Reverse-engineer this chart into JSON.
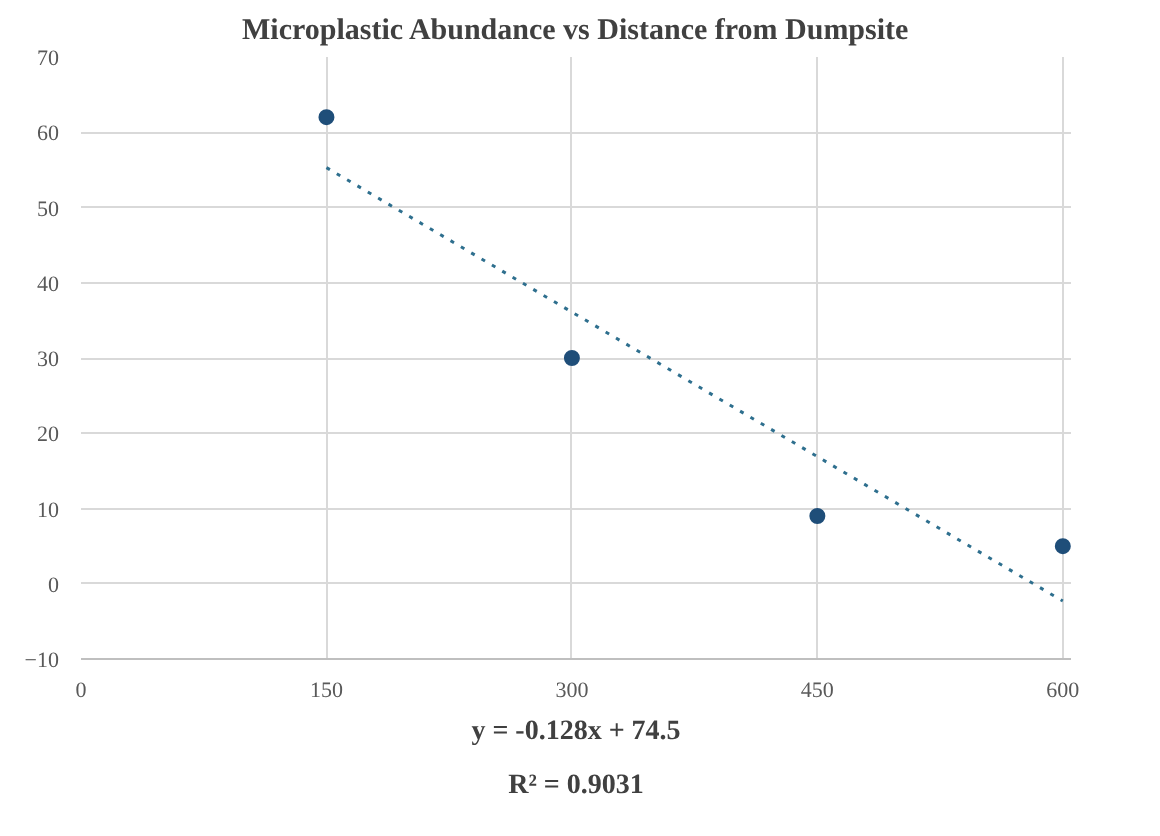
{
  "chart_data": {
    "type": "scatter",
    "title": "Microplastic Abundance vs Distance from Dumpsite",
    "x": [
      150,
      300,
      450,
      600
    ],
    "series": [
      {
        "color": "#1f4e79",
        "values": [
          62,
          30,
          9,
          5
        ],
        "marker": "circle"
      },
      {
        "type": "line",
        "color": "#2e6f8e",
        "x": [
          150,
          600
        ],
        "values": [
          55.3,
          -2.3
        ],
        "line_style": "dotted",
        "marker": "none"
      }
    ],
    "xlim": [
      0,
      605
    ],
    "xticks": [
      0,
      150,
      300,
      450,
      600
    ],
    "ylim": [
      -10,
      70
    ],
    "yticks": [
      -10,
      0,
      10,
      20,
      30,
      40,
      50,
      60,
      70
    ],
    "grid": true,
    "annotations": [
      "y = -0.128x + 74.5",
      "R² = 0.9031"
    ]
  }
}
